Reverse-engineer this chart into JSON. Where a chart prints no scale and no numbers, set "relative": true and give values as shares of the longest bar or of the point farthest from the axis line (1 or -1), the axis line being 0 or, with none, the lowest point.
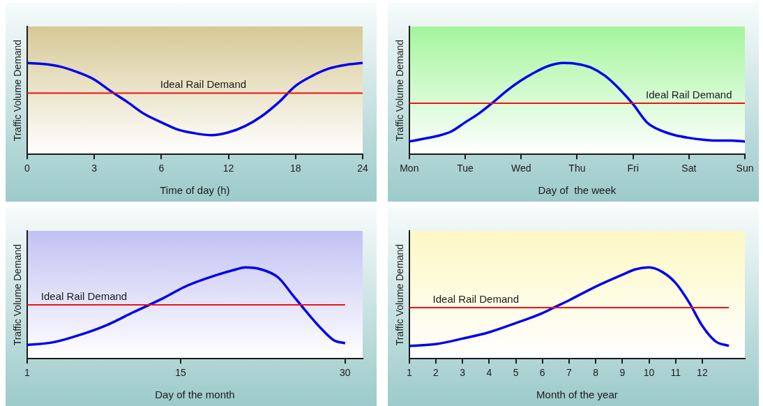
{
  "chart_data": [
    {
      "type": "line",
      "relative": true,
      "xlabel": "Time of day (h)",
      "ylabel": "Traffic Volume Demand",
      "categories": [
        "0",
        null,
        null,
        null,
        "3",
        null,
        null,
        null,
        "6",
        null,
        null,
        null,
        "12",
        null,
        null,
        null,
        "18",
        null,
        null,
        null,
        "24"
      ],
      "series": [
        {
          "color": "#0000ee",
          "values": [
            1.0,
            0.99,
            0.96,
            0.9,
            0.82,
            0.69,
            0.57,
            0.44,
            0.35,
            0.27,
            0.23,
            0.21,
            0.24,
            0.31,
            0.42,
            0.57,
            0.75,
            0.86,
            0.94,
            0.98,
            1.0
          ]
        }
      ],
      "ref_lines": [
        {
          "axis": "y",
          "value": 0.67,
          "label": "Ideal Rail Demand",
          "color": "#ee1111"
        }
      ]
    },
    {
      "type": "line",
      "relative": true,
      "xlabel": "Day of  the week",
      "ylabel": "Traffic Volume Demand",
      "categories": [
        "Mon",
        null,
        null,
        null,
        "Tue",
        null,
        null,
        null,
        "Wed",
        null,
        null,
        null,
        "Thu",
        null,
        null,
        null,
        "Fri",
        null,
        null,
        null,
        "Sat",
        null,
        null,
        null,
        "Sun"
      ],
      "series": [
        {
          "color": "#0000ee",
          "values": [
            0.14,
            0.17,
            0.2,
            0.25,
            0.35,
            0.45,
            0.57,
            0.7,
            0.81,
            0.9,
            0.97,
            1.0,
            0.99,
            0.95,
            0.86,
            0.72,
            0.55,
            0.35,
            0.26,
            0.21,
            0.18,
            0.16,
            0.15,
            0.15,
            0.14
          ]
        }
      ],
      "ref_lines": [
        {
          "axis": "y",
          "value": 0.56,
          "label": "Ideal Rail Demand",
          "color": "#ee1111"
        }
      ]
    },
    {
      "type": "line",
      "relative": true,
      "xlabel": "Day of the month",
      "ylabel": "Traffic Volume Demand",
      "x": [
        1,
        3.4,
        5.8,
        8.3,
        10.7,
        13.2,
        15.6,
        18.1,
        20.1,
        20.9,
        22.3,
        23.9,
        25.2,
        26.5,
        27.9,
        29,
        30
      ],
      "xlim": [
        1,
        31.6
      ],
      "xticks": [
        1,
        15,
        30
      ],
      "series": [
        {
          "color": "#0000ee",
          "values": [
            0.15,
            0.18,
            0.26,
            0.37,
            0.51,
            0.65,
            0.8,
            0.91,
            0.98,
            1.0,
            0.98,
            0.89,
            0.7,
            0.51,
            0.32,
            0.2,
            0.17
          ]
        }
      ],
      "ref_lines": [
        {
          "axis": "y",
          "value": 0.59,
          "label": "Ideal Rail Demand",
          "color": "#ee1111"
        }
      ]
    },
    {
      "type": "line",
      "relative": true,
      "xlabel": "Month of the year",
      "ylabel": "Traffic Volume Demand",
      "x": [
        1,
        2,
        3,
        4,
        5,
        6,
        6.5,
        7,
        8,
        9,
        9.5,
        10,
        10.5,
        11,
        11.5,
        12,
        12.5,
        13
      ],
      "xlim": [
        1,
        13.6
      ],
      "xticks": [
        1,
        2,
        3,
        4,
        5,
        6,
        7,
        8,
        9,
        10,
        11,
        12
      ],
      "series": [
        {
          "color": "#0000ee",
          "values": [
            0.14,
            0.16,
            0.22,
            0.29,
            0.39,
            0.5,
            0.57,
            0.64,
            0.79,
            0.92,
            0.98,
            1.0,
            0.95,
            0.83,
            0.62,
            0.36,
            0.19,
            0.14
          ]
        }
      ],
      "ref_lines": [
        {
          "axis": "y",
          "value": 0.56,
          "label": "Ideal Rail Demand",
          "color": "#ee1111"
        }
      ]
    }
  ]
}
